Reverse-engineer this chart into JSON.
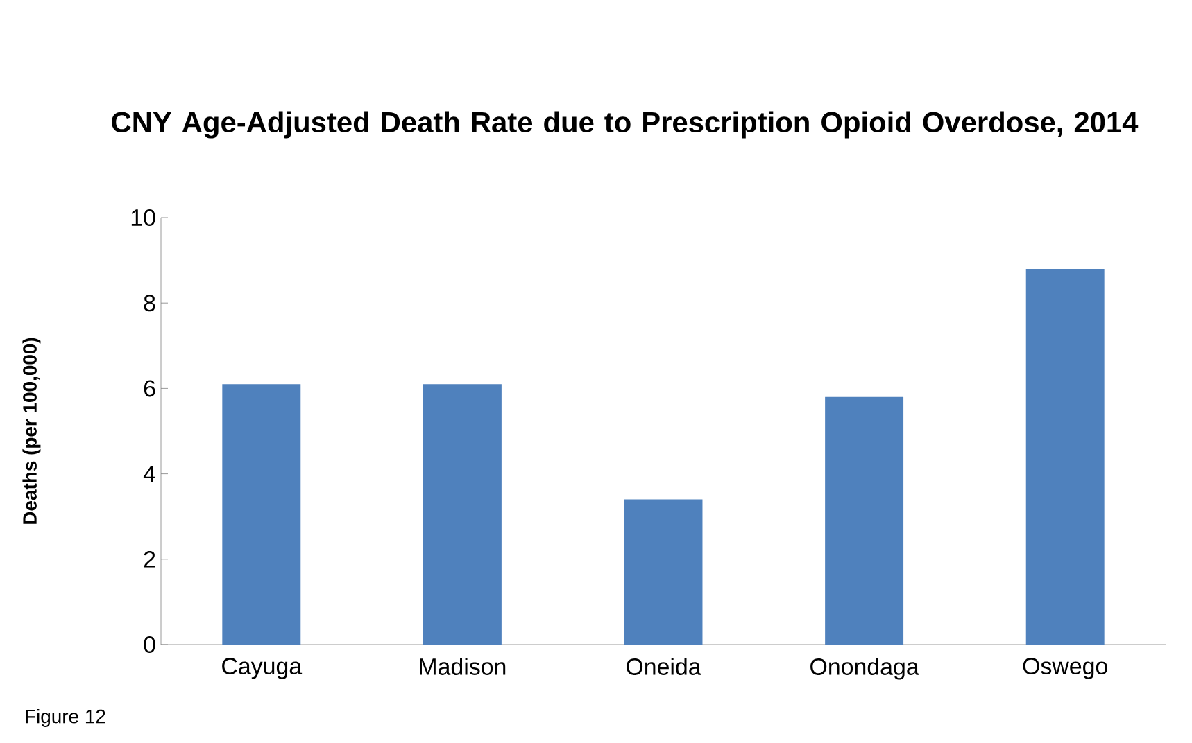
{
  "chart_data": {
    "type": "bar",
    "title": "CNY Age-Adjusted Death Rate due to Prescription Opioid Overdose, 2014",
    "ylabel": "Deaths (per 100,000)",
    "categories": [
      "Cayuga",
      "Madison",
      "Oneida",
      "Onondaga",
      "Oswego"
    ],
    "values": [
      6.1,
      6.1,
      3.4,
      5.8,
      8.8
    ],
    "color": "#4f81bd",
    "ylim": [
      0,
      10
    ],
    "yticks": [
      0,
      2,
      4,
      6,
      8,
      10
    ],
    "grid": false,
    "annotations": [
      "Figure 12"
    ]
  }
}
